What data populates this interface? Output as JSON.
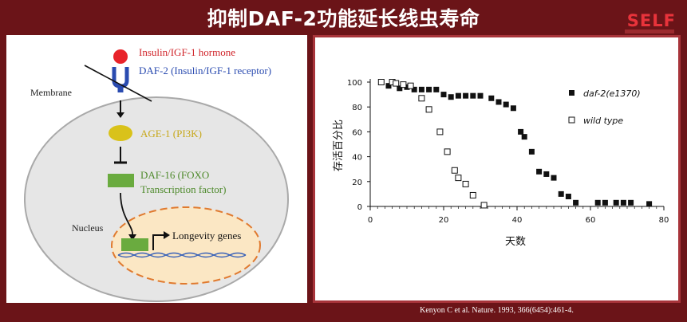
{
  "slide": {
    "title": "抑制DAF-2功能延长线虫寿命",
    "logo": "SELF",
    "citation": "Kenyon C et al. Nature. 1993, 366(6454):461-4."
  },
  "diagram": {
    "hormone": "Insulin/IGF-1 hormone",
    "receptor": "DAF-2 (Insulin/IGF-1 receptor)",
    "membrane": "Membrane",
    "age1": "AGE-1 (PI3K)",
    "daf16_line1": "DAF-16 (FOXO",
    "daf16_line2": "Transcription factor)",
    "nucleus": "Nucleus",
    "longevity": "Longevity genes",
    "colors": {
      "hormone": "#e8232a",
      "receptor": "#2a4bb0",
      "age1": "#d9c21a",
      "daf16": "#6aab3f",
      "nucleus": "#e07a2f"
    }
  },
  "chart_data": {
    "type": "scatter",
    "ylabel": "存活百分比",
    "xlabel": "天数",
    "xlim": [
      0,
      80
    ],
    "ylim": [
      0,
      100
    ],
    "xticks": [
      0,
      20,
      40,
      60,
      80
    ],
    "yticks": [
      0,
      20,
      40,
      60,
      80,
      100
    ],
    "legend_position": "top-right",
    "series": [
      {
        "name": "daf-2(e1370)",
        "marker": "filled-square",
        "color": "#111111",
        "x": [
          5,
          8,
          10,
          12,
          14,
          16,
          18,
          20,
          22,
          24,
          26,
          28,
          30,
          33,
          35,
          37,
          39,
          41,
          42,
          44,
          46,
          48,
          50,
          52,
          54,
          56,
          62,
          64,
          67,
          69,
          71,
          76
        ],
        "y": [
          97,
          95,
          96,
          94,
          94,
          94,
          94,
          90,
          88,
          89,
          89,
          89,
          89,
          87,
          84,
          82,
          79,
          60,
          56,
          44,
          28,
          26,
          23,
          10,
          8,
          3,
          3,
          3,
          3,
          3,
          3,
          2
        ]
      },
      {
        "name": "wild type",
        "marker": "open-square",
        "color": "#111111",
        "x": [
          3,
          6,
          7,
          9,
          11,
          14,
          16,
          19,
          21,
          23,
          24,
          26,
          28,
          31
        ],
        "y": [
          100,
          100,
          99,
          98,
          97,
          87,
          78,
          60,
          44,
          29,
          23,
          18,
          9,
          1
        ]
      }
    ]
  }
}
